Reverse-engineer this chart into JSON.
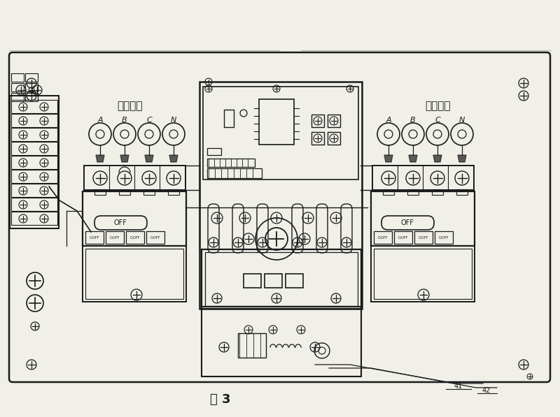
{
  "bg_color": "#f0efe8",
  "line_color": "#1a1a1a",
  "title_left": "常用电源",
  "title_right": "备用电源",
  "labels_left": [
    "A",
    "B",
    "C",
    "N"
  ],
  "labels_right": [
    "A",
    "B",
    "C",
    "N"
  ],
  "fig_label": "图 3",
  "off_label": "OFF",
  "off_small": "O.OFF"
}
